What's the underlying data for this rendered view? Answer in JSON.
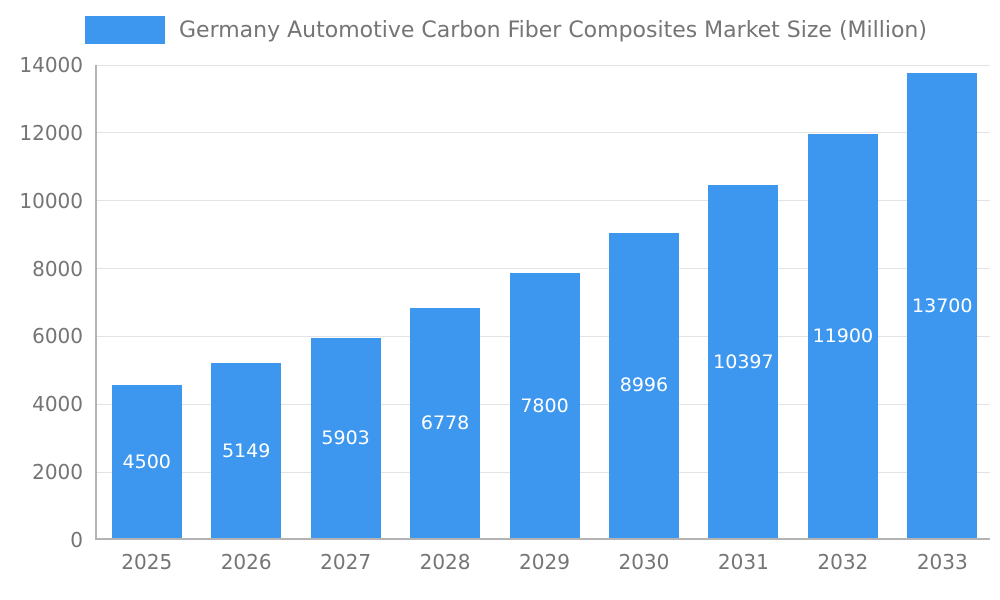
{
  "chart_data": {
    "type": "bar",
    "title": "Germany Automotive Carbon Fiber Composites Market Size (Million)",
    "categories": [
      "2025",
      "2026",
      "2027",
      "2028",
      "2029",
      "2030",
      "2031",
      "2032",
      "2033"
    ],
    "values": [
      4500,
      5149,
      5903,
      6778,
      7800,
      8996,
      10397,
      11900,
      13700
    ],
    "xlabel": "",
    "ylabel": "",
    "ylim": [
      0,
      14000
    ],
    "yticks": [
      0,
      2000,
      4000,
      6000,
      8000,
      10000,
      12000,
      14000
    ],
    "grid": true,
    "legend_position": "top-left",
    "value_labels": "inside-center",
    "colors": {
      "bar": "#3d97ee",
      "title": "#757575",
      "tick_label": "#757575",
      "gridline": "#e3e3e3",
      "axis": "#b3b3b3",
      "value_label": "#ffffff"
    }
  }
}
